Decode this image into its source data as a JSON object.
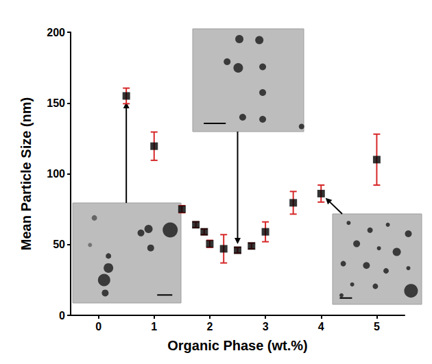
{
  "chart_data": {
    "type": "scatter",
    "x_label": "Organic Phase (wt.%)",
    "y_label": "Mean Particle Size (nm)",
    "x": [
      0.5,
      1.0,
      1.5,
      1.75,
      1.9,
      2.0,
      2.25,
      2.5,
      2.75,
      3.0,
      3.5,
      4.0,
      5.0
    ],
    "values": [
      155,
      119.5,
      75,
      64,
      59,
      50.5,
      47,
      46,
      49,
      59,
      79.5,
      86,
      110
    ],
    "errors": [
      5.5,
      10,
      2.5,
      2,
      2,
      2.5,
      10,
      2,
      2,
      7,
      8,
      6,
      18
    ],
    "color": "#000000",
    "marker": "square",
    "xlim": [
      -0.5,
      5.5
    ],
    "xticks": [
      0,
      1,
      2,
      3,
      4,
      5
    ],
    "ylim": [
      0,
      200
    ],
    "yticks": [
      0,
      50,
      100,
      150,
      200
    ],
    "grid": false
  }
}
